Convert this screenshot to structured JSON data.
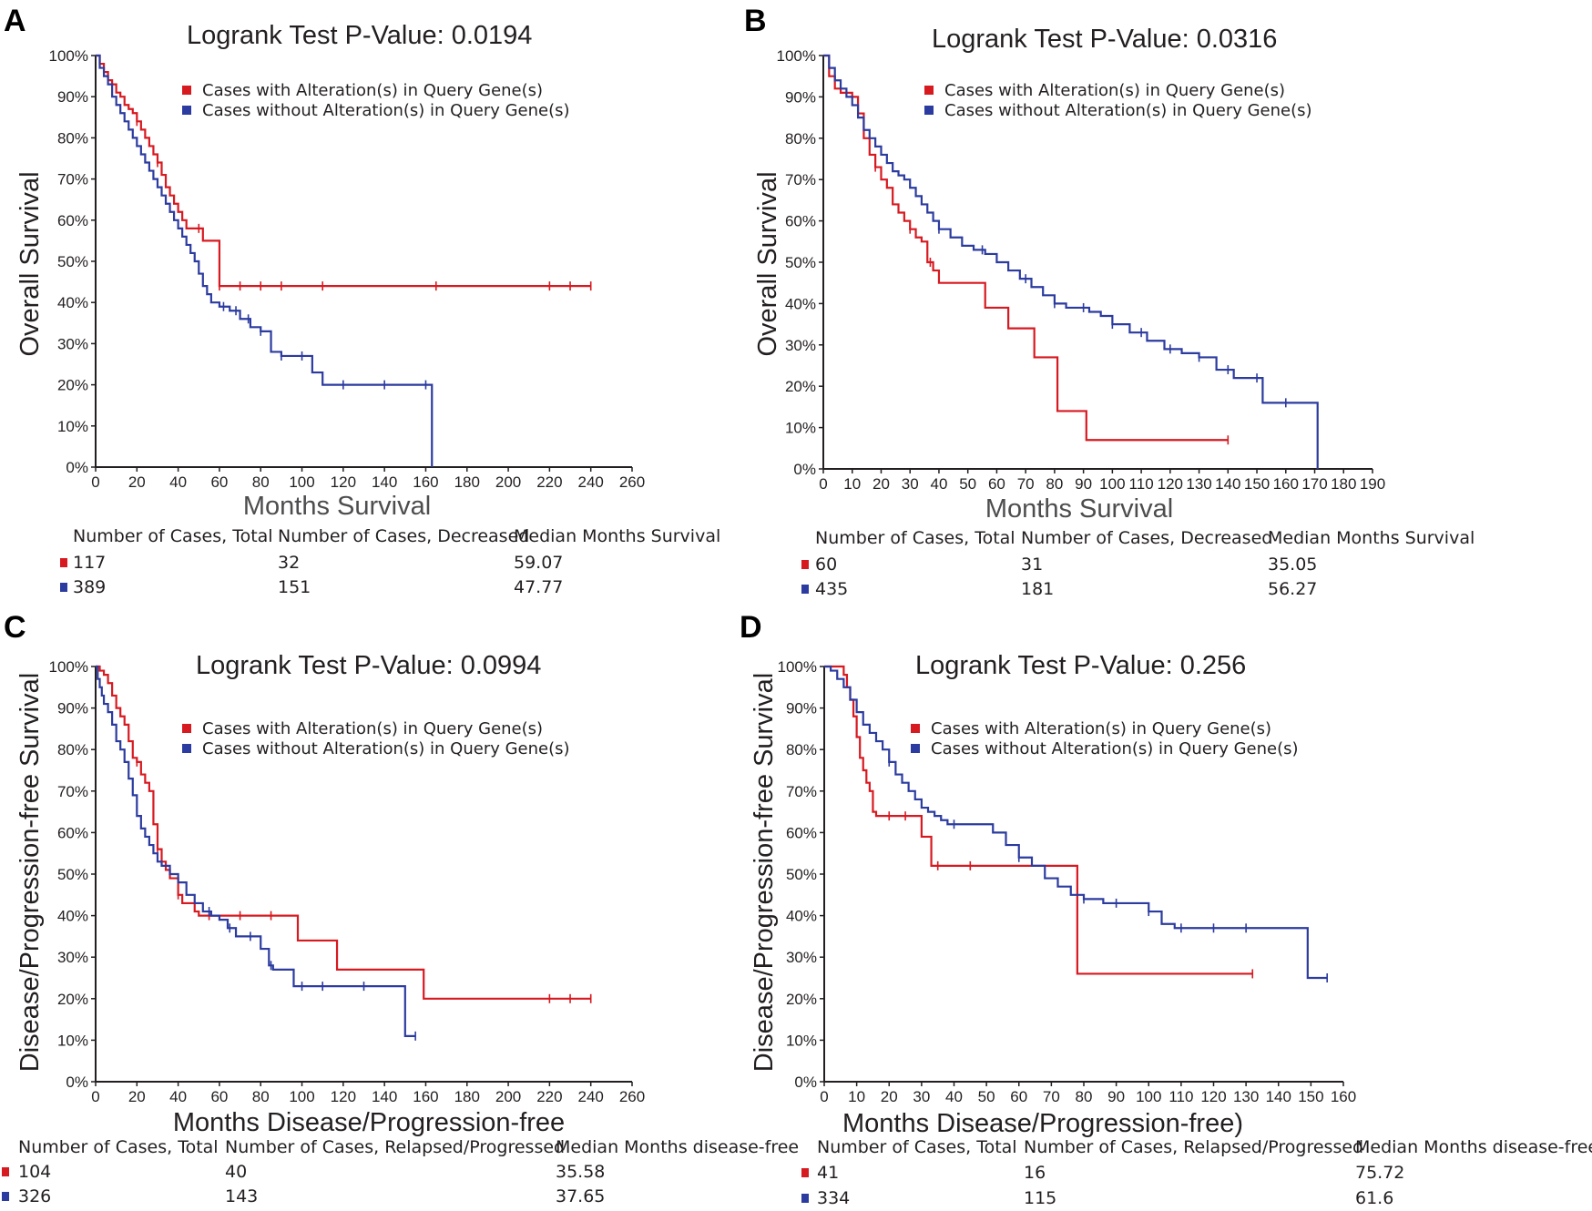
{
  "colors": {
    "altered": "#d71920",
    "unaltered": "#2b3b9f",
    "axis": "#231f20"
  },
  "legend": {
    "altered": "Cases with Alteration(s) in Query Gene(s)",
    "unaltered": "Cases without Alteration(s) in Query Gene(s)"
  },
  "chart_data": [
    {
      "type": "line",
      "panel": "A",
      "title": "Logrank Test  P-Value: 0.0194",
      "xlabel": "Months Survival",
      "ylabel": "Overall Survival",
      "xlim": [
        0,
        260
      ],
      "ylim": [
        0,
        100
      ],
      "x_ticks": [
        "0",
        "20",
        "40",
        "60",
        "80",
        "100",
        "120",
        "140",
        "160",
        "180",
        "200",
        "220",
        "240",
        "260"
      ],
      "y_ticks": [
        "0%",
        "10%",
        "20%",
        "30%",
        "40%",
        "50%",
        "60%",
        "70%",
        "80%",
        "90%",
        "100%"
      ],
      "series": [
        {
          "name": "Cases with Alteration(s) in Query Gene(s)",
          "color_key": "altered",
          "x": [
            0,
            2,
            4,
            6,
            8,
            10,
            12,
            14,
            16,
            18,
            20,
            22,
            24,
            26,
            28,
            30,
            32,
            34,
            36,
            38,
            40,
            42,
            44,
            48,
            52,
            56,
            58,
            60,
            62,
            240
          ],
          "y": [
            100,
            98,
            96,
            94,
            93,
            91,
            90,
            88,
            87,
            86,
            84,
            82,
            80,
            78,
            76,
            74,
            71,
            68,
            66,
            64,
            62,
            60,
            58,
            58,
            55,
            55,
            55,
            44,
            44,
            44
          ],
          "censor_x": [
            20,
            30,
            50,
            60,
            70,
            80,
            90,
            110,
            165,
            220,
            230,
            240
          ]
        },
        {
          "name": "Cases without Alteration(s) in Query Gene(s)",
          "color_key": "unaltered",
          "x": [
            0,
            2,
            4,
            6,
            8,
            10,
            12,
            14,
            16,
            18,
            20,
            22,
            24,
            26,
            28,
            30,
            32,
            34,
            36,
            38,
            40,
            42,
            44,
            46,
            48,
            50,
            52,
            54,
            56,
            60,
            65,
            70,
            75,
            80,
            85,
            90,
            95,
            100,
            105,
            110,
            115,
            120,
            130,
            140,
            150,
            160,
            163
          ],
          "y": [
            100,
            97,
            95,
            93,
            90,
            88,
            86,
            84,
            82,
            80,
            78,
            76,
            74,
            72,
            70,
            68,
            66,
            64,
            62,
            60,
            58,
            56,
            54,
            52,
            50,
            47,
            44,
            42,
            40,
            39,
            38,
            36,
            34,
            33,
            28,
            27,
            27,
            27,
            23,
            20,
            20,
            20,
            20,
            20,
            20,
            20,
            0
          ],
          "censor_x": [
            62,
            68,
            74,
            80,
            90,
            100,
            120,
            140,
            160
          ]
        }
      ],
      "table": {
        "headers": [
          "Number of Cases, Total",
          "Number of Cases, Decreased",
          "Median Months Survival"
        ],
        "rows": [
          [
            "117",
            "32",
            "59.07"
          ],
          [
            "389",
            "151",
            "47.77"
          ]
        ]
      }
    },
    {
      "type": "line",
      "panel": "B",
      "title": "Logrank Test P-Value: 0.0316",
      "xlabel": "Months Survival",
      "ylabel": "Overall Survival",
      "xlim": [
        0,
        190
      ],
      "ylim": [
        0,
        100
      ],
      "x_ticks": [
        "0",
        "10",
        "20",
        "30",
        "40",
        "50",
        "60",
        "70",
        "80",
        "90",
        "100",
        "110",
        "120",
        "130",
        "140",
        "150",
        "160",
        "170",
        "180",
        "190"
      ],
      "y_ticks": [
        "0%",
        "10%",
        "20%",
        "30%",
        "40%",
        "50%",
        "60%",
        "70%",
        "80%",
        "90%",
        "100%"
      ],
      "series": [
        {
          "name": "Cases with Alteration(s) in Query Gene(s)",
          "color_key": "altered",
          "x": [
            0,
            2,
            4,
            6,
            8,
            10,
            12,
            14,
            16,
            18,
            20,
            22,
            24,
            26,
            28,
            30,
            32,
            34,
            36,
            38,
            40,
            55,
            56,
            63,
            64,
            72,
            73,
            80,
            81,
            90,
            91,
            140
          ],
          "y": [
            100,
            95,
            92,
            91,
            91,
            90,
            86,
            80,
            76,
            73,
            70,
            68,
            64,
            62,
            60,
            58,
            56,
            55,
            50,
            48,
            45,
            45,
            39,
            39,
            34,
            34,
            27,
            27,
            14,
            14,
            7,
            7
          ],
          "censor_x": [
            18,
            30,
            37,
            140
          ]
        },
        {
          "name": "Cases without Alteration(s) in Query Gene(s)",
          "color_key": "unaltered",
          "x": [
            0,
            2,
            4,
            6,
            8,
            10,
            12,
            14,
            16,
            18,
            20,
            22,
            24,
            26,
            28,
            30,
            32,
            34,
            36,
            38,
            40,
            44,
            48,
            52,
            56,
            60,
            64,
            68,
            72,
            76,
            80,
            84,
            88,
            92,
            96,
            100,
            106,
            112,
            118,
            124,
            130,
            136,
            142,
            148,
            150,
            152,
            160,
            170,
            171
          ],
          "y": [
            100,
            97,
            94,
            92,
            90,
            88,
            85,
            82,
            80,
            78,
            76,
            74,
            72,
            71,
            70,
            68,
            66,
            64,
            62,
            60,
            58,
            56,
            54,
            53,
            52,
            50,
            48,
            46,
            44,
            42,
            40,
            39,
            39,
            38,
            37,
            35,
            33,
            31,
            29,
            28,
            27,
            24,
            22,
            22,
            22,
            16,
            16,
            16,
            0
          ],
          "censor_x": [
            40,
            55,
            70,
            80,
            90,
            100,
            110,
            120,
            130,
            140,
            150,
            160
          ]
        }
      ],
      "table": {
        "headers": [
          "Number of Cases, Total",
          "Number of Cases, Decreased",
          "Median Months Survival"
        ],
        "rows": [
          [
            "60",
            "31",
            "35.05"
          ],
          [
            "435",
            "181",
            "56.27"
          ]
        ]
      }
    },
    {
      "type": "line",
      "panel": "C",
      "title": "Logrank Test P-Value: 0.0994",
      "xlabel": "Months Disease/Progression-free",
      "ylabel": "Disease/Progression-free Survival",
      "xlim": [
        0,
        260
      ],
      "ylim": [
        0,
        100
      ],
      "x_ticks": [
        "0",
        "20",
        "40",
        "60",
        "80",
        "100",
        "120",
        "140",
        "160",
        "180",
        "200",
        "220",
        "240",
        "260"
      ],
      "y_ticks": [
        "0%",
        "10%",
        "20%",
        "30%",
        "40%",
        "50%",
        "60%",
        "70%",
        "80%",
        "90%",
        "100%"
      ],
      "series": [
        {
          "name": "Cases with Alteration(s) in Query Gene(s)",
          "color_key": "altered",
          "x": [
            0,
            2,
            4,
            6,
            8,
            10,
            12,
            14,
            16,
            18,
            20,
            22,
            24,
            26,
            28,
            30,
            32,
            34,
            36,
            40,
            42,
            44,
            48,
            50,
            60,
            97,
            98,
            116,
            117,
            158,
            159,
            240
          ],
          "y": [
            100,
            99,
            98,
            96,
            93,
            90,
            88,
            86,
            82,
            78,
            77,
            74,
            72,
            70,
            62,
            56,
            53,
            51,
            49,
            45,
            43,
            43,
            41,
            40,
            40,
            40,
            34,
            34,
            27,
            27,
            20,
            20
          ],
          "censor_x": [
            20,
            30,
            40,
            55,
            70,
            85,
            220,
            230,
            240
          ]
        },
        {
          "name": "Cases without Alteration(s) in Query Gene(s)",
          "color_key": "unaltered",
          "x": [
            0,
            1,
            2,
            3,
            4,
            6,
            8,
            10,
            12,
            14,
            16,
            18,
            20,
            22,
            24,
            26,
            28,
            30,
            32,
            36,
            40,
            44,
            48,
            52,
            56,
            60,
            64,
            68,
            72,
            76,
            80,
            84,
            86,
            88,
            92,
            96,
            100,
            104,
            108,
            112,
            120,
            130,
            140,
            150,
            151,
            155
          ],
          "y": [
            100,
            97,
            95,
            93,
            91,
            89,
            86,
            82,
            80,
            77,
            73,
            69,
            64,
            61,
            59,
            57,
            55,
            53,
            52,
            50,
            48,
            45,
            43,
            41,
            40,
            39,
            37,
            35,
            35,
            35,
            32,
            28,
            27,
            27,
            27,
            23,
            23,
            23,
            23,
            23,
            23,
            23,
            23,
            11,
            11,
            11
          ],
          "censor_x": [
            55,
            65,
            75,
            85,
            100,
            110,
            130,
            155
          ]
        }
      ],
      "table": {
        "headers": [
          "Number of Cases, Total",
          "Number of Cases, Relapsed/Progressed",
          "Median Months disease-free"
        ],
        "rows": [
          [
            "104",
            "40",
            "35.58"
          ],
          [
            "326",
            "143",
            "37.65"
          ]
        ]
      }
    },
    {
      "type": "line",
      "panel": "D",
      "title": "Logrank Test P-Value: 0.256",
      "xlabel": "Months Disease/Progression-free)",
      "ylabel": "Disease/Progression-free Survival",
      "xlim": [
        0,
        160
      ],
      "ylim": [
        0,
        100
      ],
      "x_ticks": [
        "0",
        "10",
        "20",
        "30",
        "40",
        "50",
        "60",
        "70",
        "80",
        "90",
        "100",
        "110",
        "120",
        "130",
        "140",
        "150",
        "160"
      ],
      "y_ticks": [
        "0%",
        "10%",
        "20%",
        "30%",
        "40%",
        "50%",
        "60%",
        "70%",
        "80%",
        "90%",
        "100%"
      ],
      "series": [
        {
          "name": "Cases with Alteration(s) in Query Gene(s)",
          "color_key": "altered",
          "x": [
            0,
            6,
            7,
            8,
            9,
            10,
            11,
            12,
            13,
            14,
            15,
            16,
            29,
            30,
            32,
            33,
            77,
            78,
            132
          ],
          "y": [
            100,
            98,
            95,
            92,
            88,
            83,
            78,
            75,
            72,
            70,
            65,
            64,
            64,
            59,
            59,
            52,
            52,
            26,
            26
          ],
          "censor_x": [
            20,
            25,
            35,
            45,
            132
          ]
        },
        {
          "name": "Cases without Alteration(s) in Query Gene(s)",
          "color_key": "unaltered",
          "x": [
            0,
            2,
            4,
            6,
            8,
            10,
            12,
            14,
            16,
            18,
            20,
            22,
            24,
            26,
            28,
            30,
            32,
            34,
            36,
            38,
            40,
            44,
            48,
            52,
            56,
            60,
            64,
            68,
            72,
            76,
            80,
            86,
            92,
            98,
            100,
            104,
            108,
            116,
            124,
            132,
            140,
            148,
            149,
            155
          ],
          "y": [
            100,
            99,
            97,
            95,
            92,
            89,
            86,
            84,
            82,
            80,
            77,
            74,
            72,
            70,
            68,
            66,
            65,
            64,
            63,
            62,
            62,
            62,
            62,
            60,
            57,
            54,
            52,
            49,
            47,
            45,
            44,
            43,
            43,
            43,
            41,
            38,
            37,
            37,
            37,
            37,
            37,
            37,
            25,
            25
          ],
          "censor_x": [
            20,
            40,
            60,
            80,
            90,
            100,
            110,
            120,
            130,
            155
          ]
        }
      ],
      "table": {
        "headers": [
          "Number of Cases, Total",
          "Number of Cases, Relapsed/Progressed",
          "Median Months disease-free"
        ],
        "rows": [
          [
            "41",
            "16",
            "75.72"
          ],
          [
            "334",
            "115",
            "61.6"
          ]
        ]
      }
    }
  ]
}
